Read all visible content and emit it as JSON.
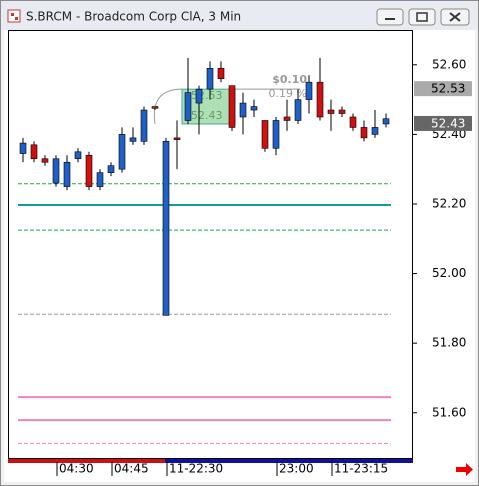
{
  "window_title": "S.BRCM - Broadcom Corp ClA, 3 Min",
  "chart_data": {
    "type": "candlestick",
    "categories": [
      null,
      null,
      null,
      "04:30",
      null,
      null,
      null,
      null,
      "04:45",
      null,
      null,
      null,
      null,
      "11-22:30",
      null,
      null,
      null,
      null,
      null,
      null,
      null,
      null,
      null,
      "23:00",
      null,
      null,
      null,
      null,
      "11-23:15",
      null,
      null,
      null,
      null,
      null
    ],
    "open": [
      52.345,
      52.37,
      52.33,
      52.26,
      52.25,
      52.33,
      52.34,
      52.25,
      52.29,
      52.3,
      52.38,
      52.38,
      52.48,
      51.88,
      52.39,
      52.44,
      52.49,
      52.53,
      52.59,
      52.54,
      52.45,
      52.47,
      52.44,
      52.36,
      52.45,
      52.44,
      52.5,
      52.55,
      52.47,
      52.47,
      52.45,
      52.42,
      52.4,
      52.43
    ],
    "high": [
      52.39,
      52.38,
      52.34,
      52.34,
      52.34,
      52.36,
      52.35,
      52.3,
      52.32,
      52.42,
      52.42,
      52.48,
      52.48,
      52.39,
      52.44,
      52.62,
      52.54,
      52.61,
      52.61,
      52.54,
      52.52,
      52.5,
      52.44,
      52.45,
      52.5,
      52.53,
      52.57,
      52.62,
      52.5,
      52.48,
      52.46,
      52.44,
      52.47,
      52.46
    ],
    "low": [
      52.32,
      52.32,
      52.31,
      52.25,
      52.24,
      52.32,
      52.24,
      52.24,
      52.28,
      52.29,
      52.37,
      52.37,
      52.47,
      51.88,
      52.3,
      52.43,
      52.4,
      52.5,
      52.55,
      52.41,
      52.4,
      52.45,
      52.35,
      52.34,
      52.41,
      52.43,
      52.46,
      52.44,
      52.41,
      52.45,
      52.41,
      52.38,
      52.39,
      52.42
    ],
    "close": [
      52.375,
      52.33,
      52.32,
      52.33,
      52.32,
      52.35,
      52.25,
      52.29,
      52.31,
      52.4,
      52.39,
      52.47,
      52.475,
      52.38,
      52.385,
      52.52,
      52.53,
      52.59,
      52.56,
      52.42,
      52.49,
      52.48,
      52.36,
      52.44,
      52.44,
      52.5,
      52.55,
      52.45,
      52.46,
      52.46,
      52.42,
      52.39,
      52.42,
      52.445
    ],
    "up_color": "#1f5fc8",
    "down_color": "#d01010",
    "ylim": [
      51.47,
      52.7
    ],
    "yticks": [
      {
        "value": 51.6,
        "label": "51.60"
      },
      {
        "value": 51.8,
        "label": "51.80"
      },
      {
        "value": 52.0,
        "label": "52.00"
      },
      {
        "value": 52.2,
        "label": "52.20"
      },
      {
        "value": 52.4,
        "label": "52.40"
      },
      {
        "value": 52.6,
        "label": "52.60"
      }
    ],
    "levels": [
      {
        "value": 52.258,
        "color": "#22aa44",
        "dash": true
      },
      {
        "value": 52.197,
        "color": "#139d9d",
        "dash": false
      },
      {
        "value": 52.125,
        "color": "#22aa44",
        "dash": true
      },
      {
        "value": 51.883,
        "color": "#999999",
        "dash": true
      },
      {
        "value": 51.645,
        "color": "#f080c0",
        "dash": false
      },
      {
        "value": 51.579,
        "color": "#f080c0",
        "dash": false
      },
      {
        "value": 51.512,
        "color": "#f080c0",
        "dash": true
      }
    ],
    "price_tags": [
      52.53,
      52.43
    ],
    "measure": {
      "high": 52.53,
      "low": 52.43,
      "change": "$0.10",
      "percent": "0.19 %"
    }
  }
}
